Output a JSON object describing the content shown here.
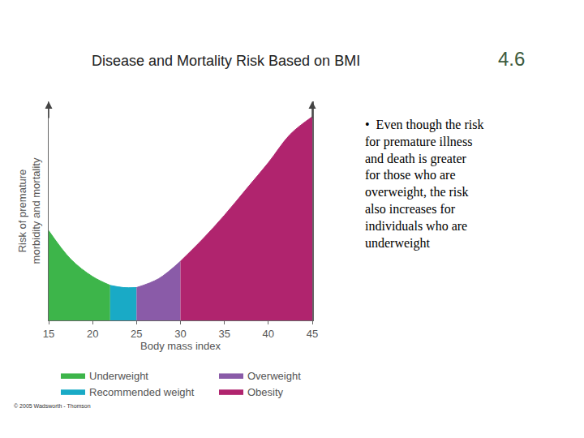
{
  "chart_data": {
    "type": "area",
    "title": "Disease and Mortality Risk Based on BMI",
    "label": "4.6",
    "xlabel": "Body mass index",
    "ylabel": [
      "Risk of premature",
      "morbidity and mortality"
    ],
    "xlim": [
      15,
      45
    ],
    "xticks": [
      15,
      20,
      25,
      30,
      35,
      40,
      45
    ],
    "ylim": [
      0,
      100
    ],
    "tick_labels": "x",
    "grid": false,
    "legend": "bottom",
    "series": [
      {
        "name": "Underweight",
        "color": "#3db54a",
        "x": [
          15,
          17.5,
          20,
          22
        ],
        "values": [
          41,
          28,
          20,
          16
        ]
      },
      {
        "name": "Recommended weight",
        "color": "#19aac6",
        "x": [
          22,
          23.5,
          25
        ],
        "values": [
          16,
          15,
          15
        ]
      },
      {
        "name": "Overweight",
        "color": "#8a5ba8",
        "x": [
          25,
          27.5,
          30
        ],
        "values": [
          15,
          19,
          27
        ]
      },
      {
        "name": "Obesity",
        "color": "#b0246e",
        "x": [
          30,
          32.5,
          35,
          37.5,
          40,
          42.5,
          45
        ],
        "values": [
          27,
          37,
          48,
          60,
          72,
          85,
          93
        ]
      }
    ],
    "annotation_lines": [
      "•  Even though the risk",
      "for premature illness",
      "and death is greater",
      "for those who are",
      "overweight, the risk",
      "also increases for",
      "individuals who are",
      "underweight"
    ],
    "source": "© 2005 Wadsworth - Thomson"
  }
}
